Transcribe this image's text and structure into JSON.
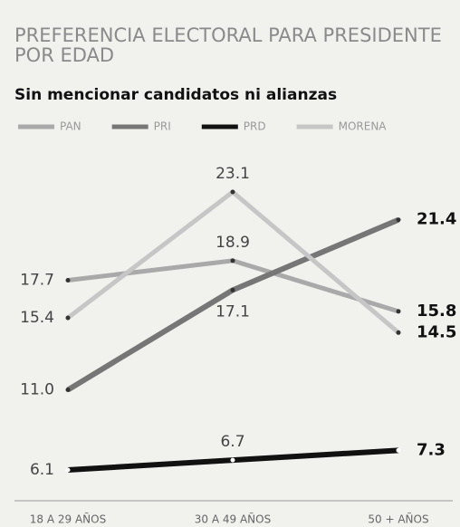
{
  "chart_data": {
    "type": "line",
    "title": "PREFERENCIA ELECTORAL PARA PRESIDENTE",
    "title_line2": "POR EDAD",
    "subtitle": "Sin mencionar candidatos ni alianzas",
    "categories": [
      "18 A 29 AÑOS",
      "30 A 49 AÑOS",
      "50 + AÑOS"
    ],
    "series": [
      {
        "name": "PAN",
        "color": "#a9a9a9",
        "values": [
          17.7,
          18.9,
          15.8
        ]
      },
      {
        "name": "PRI",
        "color": "#767676",
        "values": [
          11.0,
          17.1,
          21.4
        ],
        "value_labels": [
          "11.0",
          "17.1",
          "21.4"
        ]
      },
      {
        "name": "PRD",
        "color": "#111111",
        "values": [
          6.1,
          6.7,
          7.3
        ]
      },
      {
        "name": "MORENA",
        "color": "#c6c6c6",
        "values": [
          15.4,
          23.1,
          14.5
        ]
      }
    ]
  }
}
